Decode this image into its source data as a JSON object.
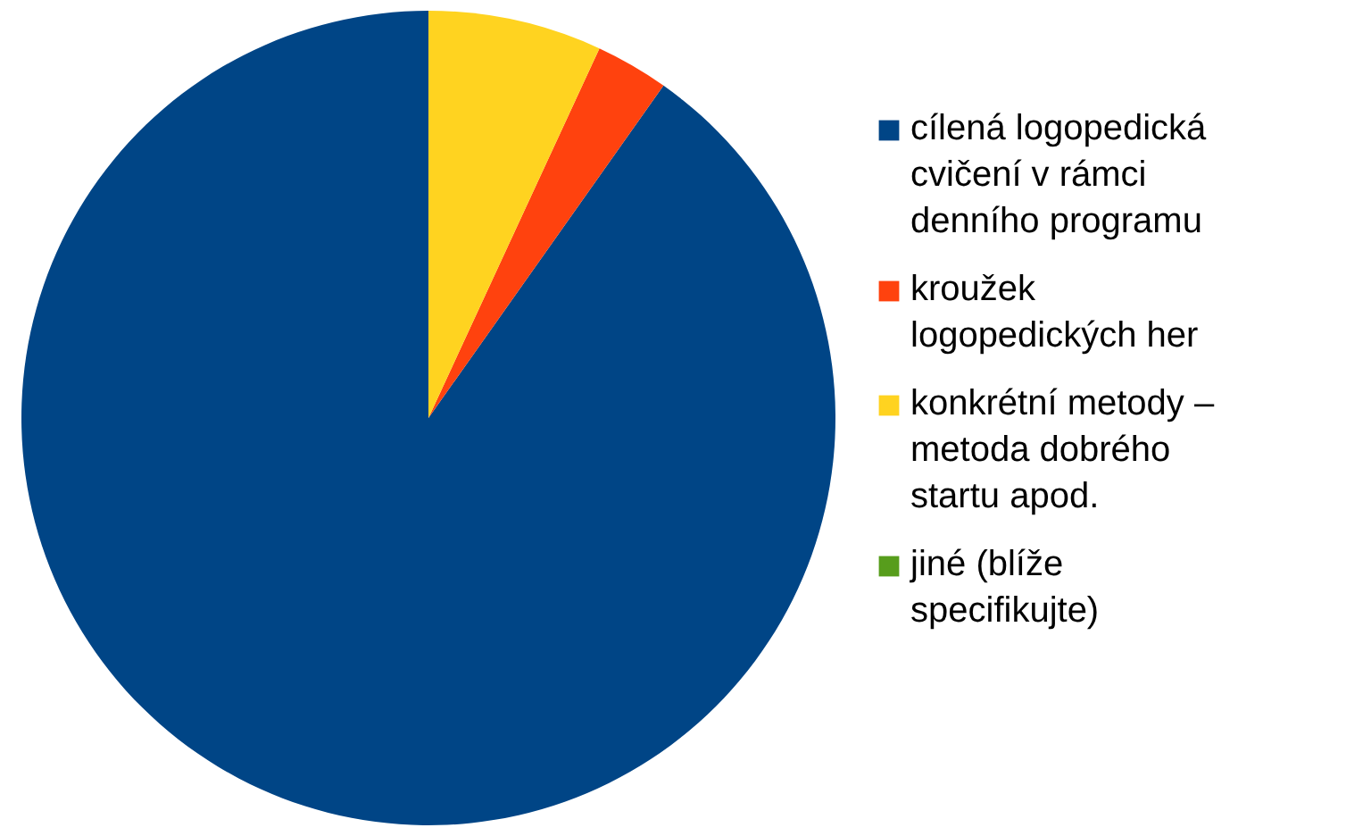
{
  "chart_data": {
    "type": "pie",
    "categories": [
      "cílená logopedická cvičení v rámci denního programu",
      "kroužek logopedických her",
      "konkrétní metody – metoda dobrého startu apod.",
      "jiné (blíže specifikujte)"
    ],
    "values": [
      90.2,
      2.9,
      6.9,
      0
    ],
    "colors": [
      "#004586",
      "#ff420e",
      "#ffd320",
      "#579d1c"
    ],
    "legend": "right"
  }
}
